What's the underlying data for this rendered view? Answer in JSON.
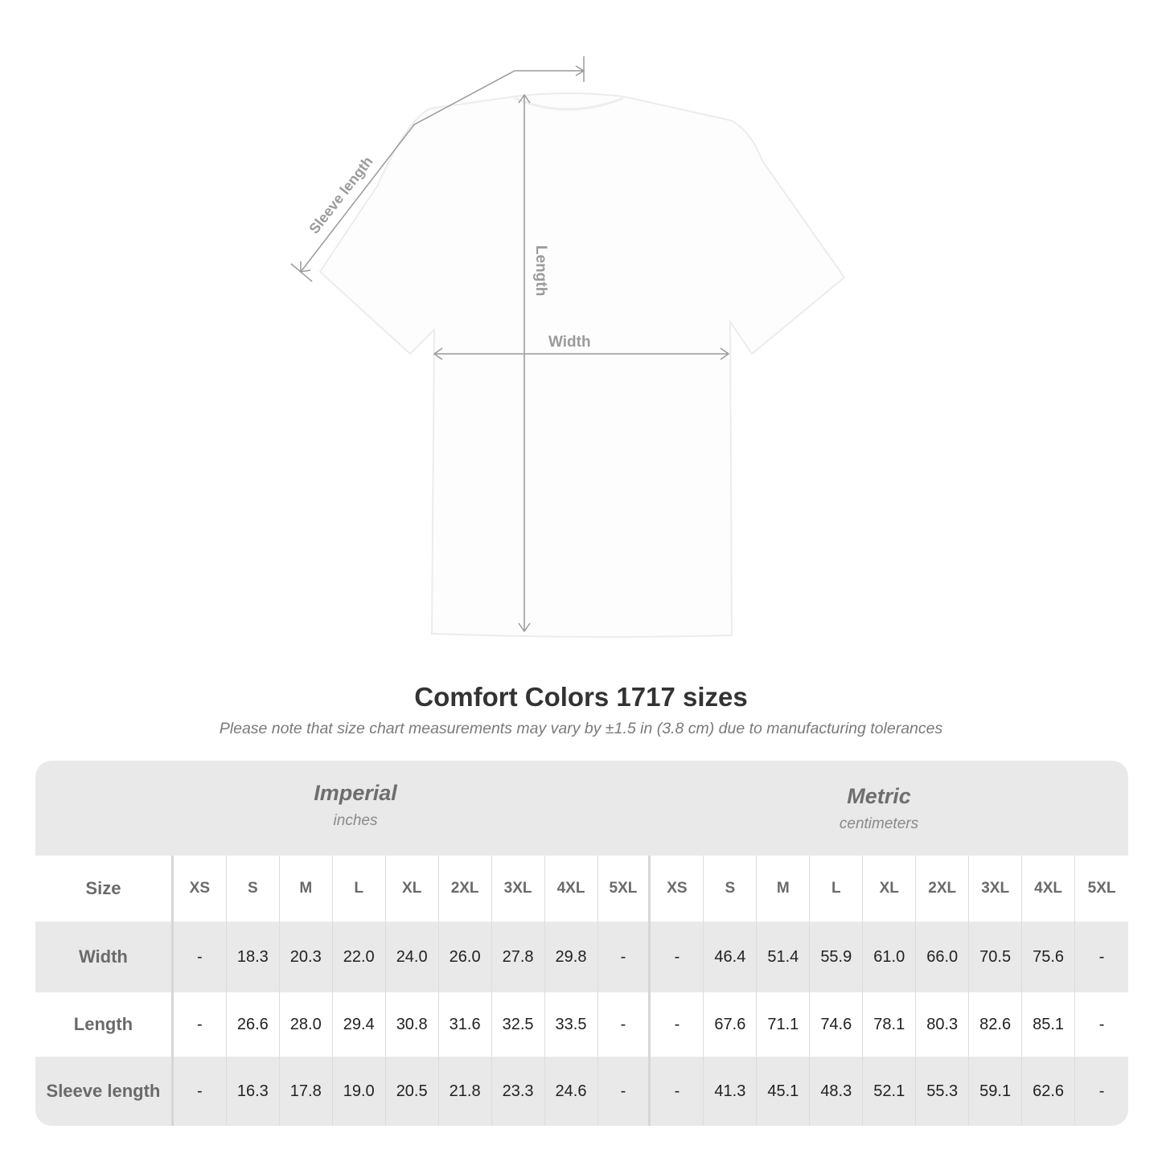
{
  "diagram": {
    "labels": {
      "sleeve": "Sleeve length",
      "length": "Length",
      "width": "Width"
    }
  },
  "title": "Comfort Colors 1717 sizes",
  "subtitle": "Please note that size chart measurements may vary by ±1.5 in (3.8 cm) due to manufacturing tolerances",
  "table": {
    "imperial": {
      "name": "Imperial",
      "unit": "inches"
    },
    "metric": {
      "name": "Metric",
      "unit": "centimeters"
    },
    "size_label": "Size",
    "sizes": [
      "XS",
      "S",
      "M",
      "L",
      "XL",
      "2XL",
      "3XL",
      "4XL",
      "5XL"
    ],
    "rows": [
      {
        "label": "Width",
        "imperial": [
          "-",
          "18.3",
          "20.3",
          "22.0",
          "24.0",
          "26.0",
          "27.8",
          "29.8",
          "-"
        ],
        "metric": [
          "-",
          "46.4",
          "51.4",
          "55.9",
          "61.0",
          "66.0",
          "70.5",
          "75.6",
          "-"
        ]
      },
      {
        "label": "Length",
        "imperial": [
          "-",
          "26.6",
          "28.0",
          "29.4",
          "30.8",
          "31.6",
          "32.5",
          "33.5",
          "-"
        ],
        "metric": [
          "-",
          "67.6",
          "71.1",
          "74.6",
          "78.1",
          "80.3",
          "82.6",
          "85.1",
          "-"
        ]
      },
      {
        "label": "Sleeve length",
        "imperial": [
          "-",
          "16.3",
          "17.8",
          "19.0",
          "20.5",
          "21.8",
          "23.3",
          "24.6",
          "-"
        ],
        "metric": [
          "-",
          "41.3",
          "45.1",
          "48.3",
          "52.1",
          "55.3",
          "59.1",
          "62.6",
          "-"
        ]
      }
    ]
  },
  "colors": {
    "header_bg": "#e9e9e9",
    "label_text": "#6a6a6a",
    "measure_line": "#9a9a9a"
  }
}
